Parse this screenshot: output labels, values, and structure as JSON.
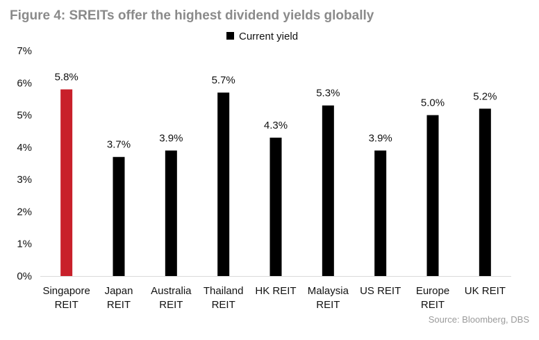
{
  "title": "Figure 4: SREITs offer the highest dividend yields globally",
  "source": "Source: Bloomberg, DBS",
  "chart_data": {
    "type": "bar",
    "title": "Figure 4: SREITs offer the highest dividend yields globally",
    "xlabel": "",
    "ylabel": "",
    "categories": [
      [
        "Singapore",
        "REIT"
      ],
      [
        "Japan",
        "REIT"
      ],
      [
        "Australia",
        "REIT"
      ],
      [
        "Thailand",
        "REIT"
      ],
      [
        "HK REIT"
      ],
      [
        "Malaysia",
        "REIT"
      ],
      [
        "US REIT"
      ],
      [
        "Europe",
        "REIT"
      ],
      [
        "UK REIT"
      ]
    ],
    "series": [
      {
        "name": "Current yield",
        "values": [
          5.8,
          3.7,
          3.9,
          5.7,
          4.3,
          5.3,
          3.9,
          5.0,
          5.2
        ],
        "labels": [
          "5.8%",
          "3.7%",
          "3.9%",
          "5.7%",
          "4.3%",
          "5.3%",
          "3.9%",
          "5.0%",
          "5.2%"
        ],
        "color": "#000000"
      }
    ],
    "highlight": {
      "index": 0,
      "color": "#c8202a"
    },
    "ylim": [
      0,
      7
    ],
    "yticks": [
      0,
      1,
      2,
      3,
      4,
      5,
      6,
      7
    ],
    "ytick_labels": [
      "0%",
      "1%",
      "2%",
      "3%",
      "4%",
      "5%",
      "6%",
      "7%"
    ],
    "grid": false,
    "legend_position": "top-center",
    "axis_color": "#d9d9d9"
  }
}
